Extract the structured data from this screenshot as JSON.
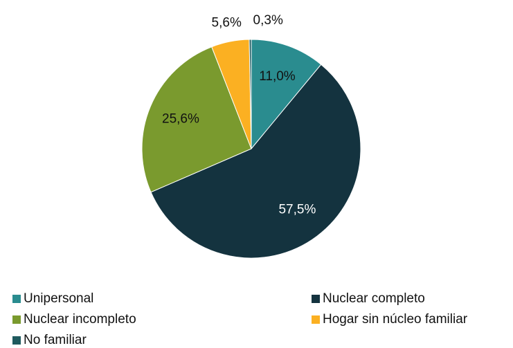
{
  "chart_data": {
    "type": "pie",
    "categories": [
      "Unipersonal",
      "Nuclear completo",
      "Nuclear incompleto",
      "Hogar sin núcleo familiar",
      "No familiar"
    ],
    "values": [
      11.0,
      57.5,
      25.6,
      5.6,
      0.3
    ],
    "value_labels": [
      "11,0%",
      "57,5%",
      "25,6%",
      "5,6%",
      "0,3%"
    ],
    "colors": [
      "#2a8c8f",
      "#14333f",
      "#7a9a2e",
      "#fbb022",
      "#1f5a5e"
    ],
    "legend": "bottom"
  }
}
